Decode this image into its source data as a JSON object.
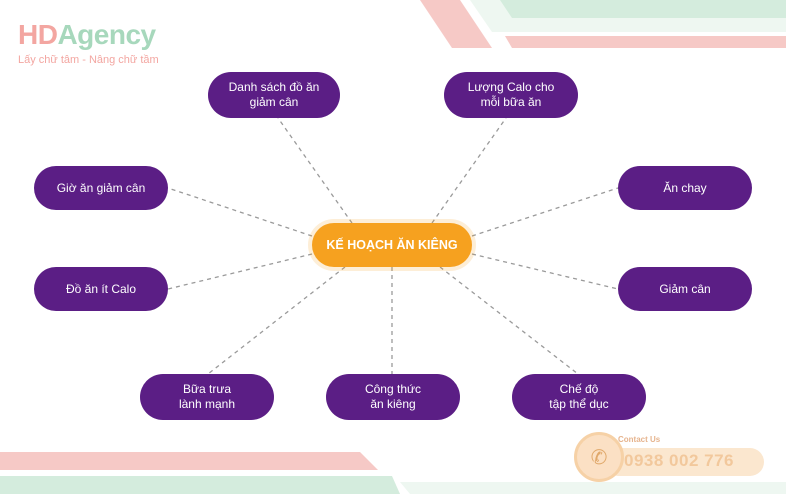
{
  "brand": {
    "logo_hd": "HD",
    "logo_agency": "Agency",
    "tagline": "Lấy chữ tâm - Nâng chữ tầm"
  },
  "diagram": {
    "center": "KẾ HOẠCH ĂN KIÊNG",
    "nodes": [
      {
        "id": "danh-sach-do-an",
        "label": "Danh sách đồ ăn\ngiảm cân"
      },
      {
        "id": "luong-calo",
        "label": "Lượng Calo cho\nmỗi bữa ăn"
      },
      {
        "id": "gio-an",
        "label": "Giờ ăn giảm cân"
      },
      {
        "id": "an-chay",
        "label": "Ăn chay"
      },
      {
        "id": "do-an-it-calo",
        "label": "Đồ ăn ít Calo"
      },
      {
        "id": "giam-can",
        "label": "Giảm cân"
      },
      {
        "id": "bua-trua",
        "label": "Bữa trưa\nlành mạnh"
      },
      {
        "id": "cong-thuc",
        "label": "Công thức\năn kiêng"
      },
      {
        "id": "che-do",
        "label": "Chế độ\ntập thể dục"
      }
    ]
  },
  "contact": {
    "label": "Contact Us",
    "phone": "0938 002 776"
  },
  "colors": {
    "node": "#5b1e85",
    "center": "#f6a11f",
    "connector": "#9a9a9a",
    "stripe_pink": "#f6c9c6",
    "stripe_green": "#d4ecdd"
  }
}
